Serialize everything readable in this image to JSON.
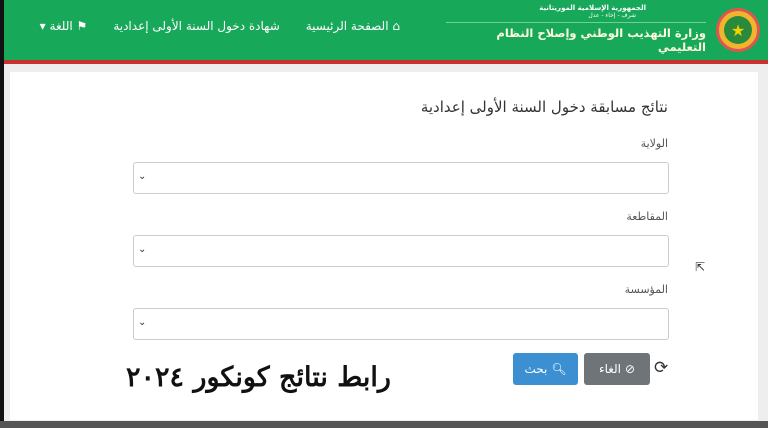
{
  "header": {
    "republic": "الجمهورية الإسلامية الموريتانية",
    "motto": "شرف - إخاء - عدل",
    "ministry": "وزارة التهذيب الوطني وإصلاح النظام التعليمي",
    "nav": {
      "home": "الصفحة الرئيسية",
      "exam": "شهادة دخول السنة الأولى إعدادية",
      "language": "اللغة"
    },
    "colors": {
      "green": "#17a85a",
      "red": "#c8312f"
    }
  },
  "form": {
    "title": "نتائج مسابقة دخول السنة الأولى إعدادية",
    "fields": [
      {
        "label": "الولاية",
        "value": ""
      },
      {
        "label": "المقاطعة",
        "value": ""
      },
      {
        "label": "المؤسسة",
        "value": ""
      }
    ],
    "search_label": "بحث",
    "cancel_label": "الغاء"
  },
  "watermark": "رابط نتائج كونكور ٢٠٢٤"
}
